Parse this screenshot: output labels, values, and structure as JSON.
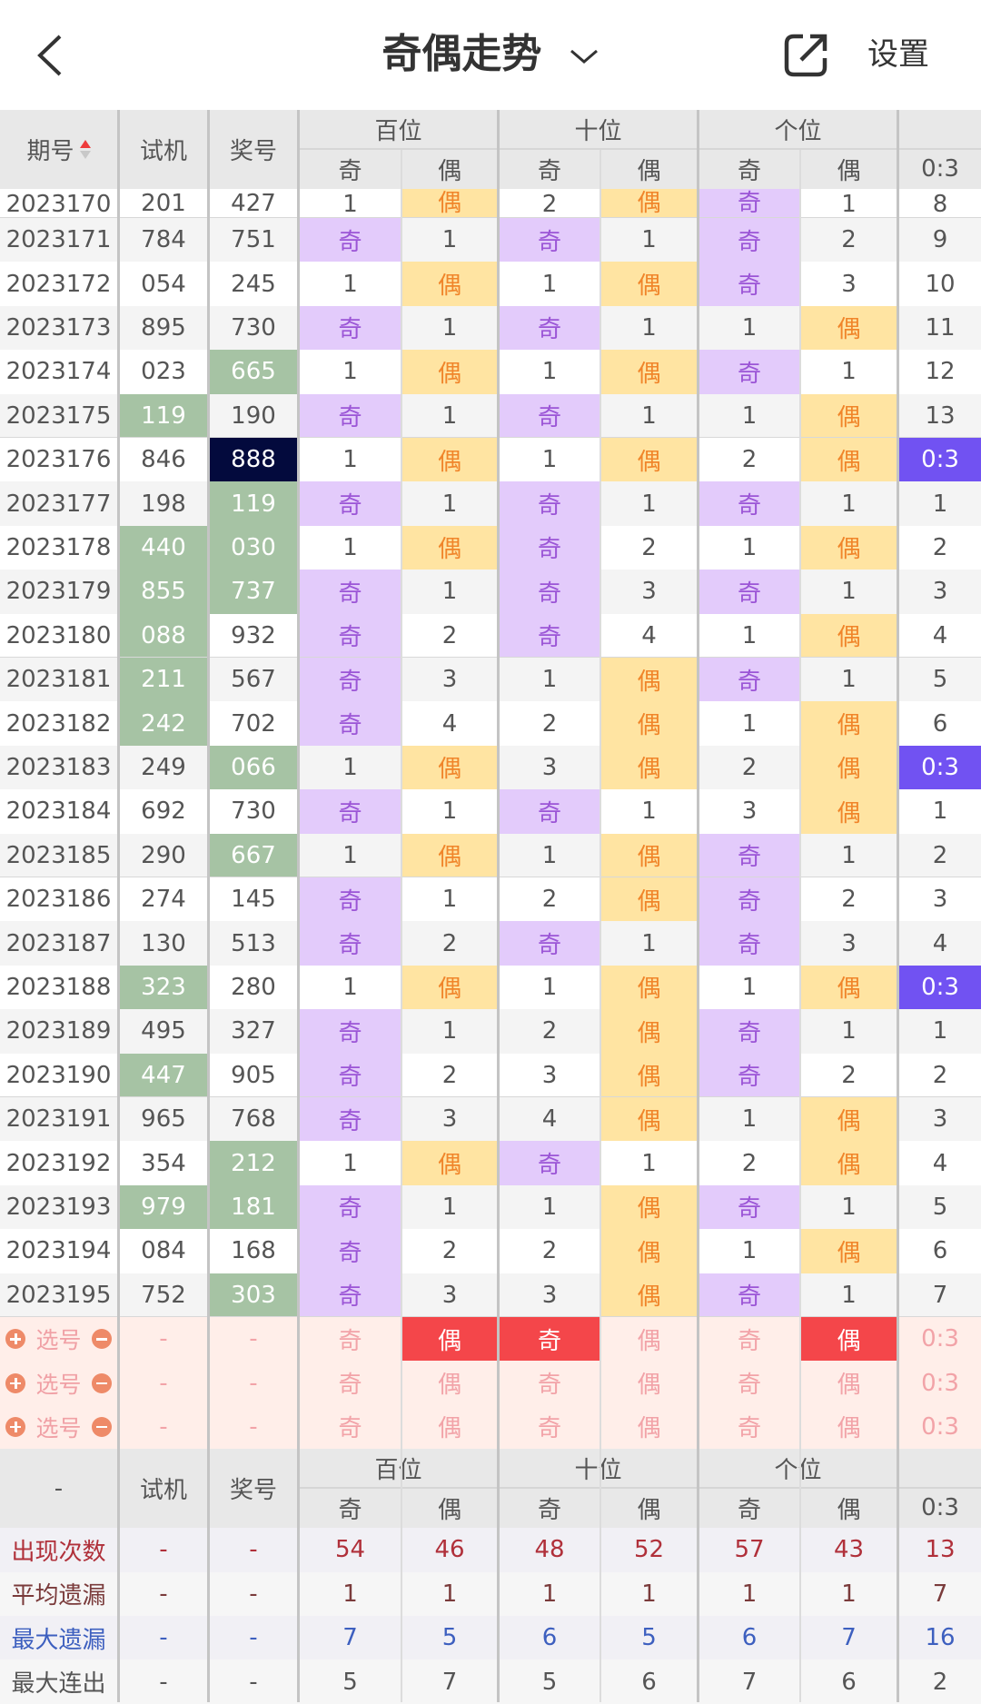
{
  "header": {
    "title": "奇偶走势",
    "settings_label": "设置"
  },
  "columns": {
    "issue": "期号",
    "trial": "试机",
    "prize": "奖号",
    "groups": [
      "百位",
      "十位",
      "个位"
    ],
    "odd": "奇",
    "even": "偶",
    "ratio": "0:3"
  },
  "rows": [
    {
      "issue": "2023170",
      "trial": "201",
      "prize": "427",
      "trialHi": false,
      "prizeHi": "",
      "cells": [
        "1",
        "偶",
        "2",
        "偶",
        "奇",
        "1"
      ],
      "ratio": "8"
    },
    {
      "issue": "2023171",
      "trial": "784",
      "prize": "751",
      "trialHi": false,
      "prizeHi": "",
      "cells": [
        "奇",
        "1",
        "奇",
        "1",
        "奇",
        "2"
      ],
      "ratio": "9"
    },
    {
      "issue": "2023172",
      "trial": "054",
      "prize": "245",
      "trialHi": false,
      "prizeHi": "",
      "cells": [
        "1",
        "偶",
        "1",
        "偶",
        "奇",
        "3"
      ],
      "ratio": "10"
    },
    {
      "issue": "2023173",
      "trial": "895",
      "prize": "730",
      "trialHi": false,
      "prizeHi": "",
      "cells": [
        "奇",
        "1",
        "奇",
        "1",
        "1",
        "偶"
      ],
      "ratio": "11"
    },
    {
      "issue": "2023174",
      "trial": "023",
      "prize": "665",
      "trialHi": false,
      "prizeHi": "green",
      "cells": [
        "1",
        "偶",
        "1",
        "偶",
        "奇",
        "1"
      ],
      "ratio": "12"
    },
    {
      "issue": "2023175",
      "trial": "119",
      "prize": "190",
      "trialHi": true,
      "prizeHi": "",
      "cells": [
        "奇",
        "1",
        "奇",
        "1",
        "1",
        "偶"
      ],
      "ratio": "13"
    },
    {
      "issue": "2023176",
      "trial": "846",
      "prize": "888",
      "trialHi": false,
      "prizeHi": "navy",
      "cells": [
        "1",
        "偶",
        "1",
        "偶",
        "2",
        "偶"
      ],
      "ratio": "0:3"
    },
    {
      "issue": "2023177",
      "trial": "198",
      "prize": "119",
      "trialHi": false,
      "prizeHi": "green",
      "cells": [
        "奇",
        "1",
        "奇",
        "1",
        "奇",
        "1"
      ],
      "ratio": "1"
    },
    {
      "issue": "2023178",
      "trial": "440",
      "prize": "030",
      "trialHi": true,
      "prizeHi": "green",
      "cells": [
        "1",
        "偶",
        "奇",
        "2",
        "1",
        "偶"
      ],
      "ratio": "2"
    },
    {
      "issue": "2023179",
      "trial": "855",
      "prize": "737",
      "trialHi": true,
      "prizeHi": "green",
      "cells": [
        "奇",
        "1",
        "奇",
        "3",
        "奇",
        "1"
      ],
      "ratio": "3"
    },
    {
      "issue": "2023180",
      "trial": "088",
      "prize": "932",
      "trialHi": true,
      "prizeHi": "",
      "cells": [
        "奇",
        "2",
        "奇",
        "4",
        "1",
        "偶"
      ],
      "ratio": "4"
    },
    {
      "issue": "2023181",
      "trial": "211",
      "prize": "567",
      "trialHi": true,
      "prizeHi": "",
      "cells": [
        "奇",
        "3",
        "1",
        "偶",
        "奇",
        "1"
      ],
      "ratio": "5"
    },
    {
      "issue": "2023182",
      "trial": "242",
      "prize": "702",
      "trialHi": true,
      "prizeHi": "",
      "cells": [
        "奇",
        "4",
        "2",
        "偶",
        "1",
        "偶"
      ],
      "ratio": "6"
    },
    {
      "issue": "2023183",
      "trial": "249",
      "prize": "066",
      "trialHi": false,
      "prizeHi": "green",
      "cells": [
        "1",
        "偶",
        "3",
        "偶",
        "2",
        "偶"
      ],
      "ratio": "0:3"
    },
    {
      "issue": "2023184",
      "trial": "692",
      "prize": "730",
      "trialHi": false,
      "prizeHi": "",
      "cells": [
        "奇",
        "1",
        "奇",
        "1",
        "3",
        "偶"
      ],
      "ratio": "1"
    },
    {
      "issue": "2023185",
      "trial": "290",
      "prize": "667",
      "trialHi": false,
      "prizeHi": "green",
      "cells": [
        "1",
        "偶",
        "1",
        "偶",
        "奇",
        "1"
      ],
      "ratio": "2"
    },
    {
      "issue": "2023186",
      "trial": "274",
      "prize": "145",
      "trialHi": false,
      "prizeHi": "",
      "cells": [
        "奇",
        "1",
        "2",
        "偶",
        "奇",
        "2"
      ],
      "ratio": "3"
    },
    {
      "issue": "2023187",
      "trial": "130",
      "prize": "513",
      "trialHi": false,
      "prizeHi": "",
      "cells": [
        "奇",
        "2",
        "奇",
        "1",
        "奇",
        "3"
      ],
      "ratio": "4"
    },
    {
      "issue": "2023188",
      "trial": "323",
      "prize": "280",
      "trialHi": true,
      "prizeHi": "",
      "cells": [
        "1",
        "偶",
        "1",
        "偶",
        "1",
        "偶"
      ],
      "ratio": "0:3"
    },
    {
      "issue": "2023189",
      "trial": "495",
      "prize": "327",
      "trialHi": false,
      "prizeHi": "",
      "cells": [
        "奇",
        "1",
        "2",
        "偶",
        "奇",
        "1"
      ],
      "ratio": "1"
    },
    {
      "issue": "2023190",
      "trial": "447",
      "prize": "905",
      "trialHi": true,
      "prizeHi": "",
      "cells": [
        "奇",
        "2",
        "3",
        "偶",
        "奇",
        "2"
      ],
      "ratio": "2"
    },
    {
      "issue": "2023191",
      "trial": "965",
      "prize": "768",
      "trialHi": false,
      "prizeHi": "",
      "cells": [
        "奇",
        "3",
        "4",
        "偶",
        "1",
        "偶"
      ],
      "ratio": "3"
    },
    {
      "issue": "2023192",
      "trial": "354",
      "prize": "212",
      "trialHi": false,
      "prizeHi": "green",
      "cells": [
        "1",
        "偶",
        "奇",
        "1",
        "2",
        "偶"
      ],
      "ratio": "4"
    },
    {
      "issue": "2023193",
      "trial": "979",
      "prize": "181",
      "trialHi": true,
      "prizeHi": "green",
      "cells": [
        "奇",
        "1",
        "1",
        "偶",
        "奇",
        "1"
      ],
      "ratio": "5"
    },
    {
      "issue": "2023194",
      "trial": "084",
      "prize": "168",
      "trialHi": false,
      "prizeHi": "",
      "cells": [
        "奇",
        "2",
        "2",
        "偶",
        "1",
        "偶"
      ],
      "ratio": "6"
    },
    {
      "issue": "2023195",
      "trial": "752",
      "prize": "303",
      "trialHi": false,
      "prizeHi": "green",
      "cells": [
        "奇",
        "3",
        "3",
        "偶",
        "奇",
        "1"
      ],
      "ratio": "7"
    }
  ],
  "selection": {
    "label": "选号",
    "dash": "-",
    "rows": [
      {
        "cells": [
          "奇",
          "偶",
          "奇",
          "偶",
          "奇",
          "偶"
        ],
        "selected": [
          false,
          true,
          true,
          false,
          false,
          true
        ],
        "ratio": "0:3"
      },
      {
        "cells": [
          "奇",
          "偶",
          "奇",
          "偶",
          "奇",
          "偶"
        ],
        "selected": [
          false,
          false,
          false,
          false,
          false,
          false
        ],
        "ratio": "0:3"
      },
      {
        "cells": [
          "奇",
          "偶",
          "奇",
          "偶",
          "奇",
          "偶"
        ],
        "selected": [
          false,
          false,
          false,
          false,
          false,
          false
        ],
        "ratio": "0:3"
      }
    ]
  },
  "stats": {
    "corner": "-",
    "rows": [
      {
        "label": "出现次数",
        "style": "red",
        "values": [
          "54",
          "46",
          "48",
          "52",
          "57",
          "43"
        ],
        "ratio": "13"
      },
      {
        "label": "平均遗漏",
        "style": "brown",
        "values": [
          "1",
          "1",
          "1",
          "1",
          "1",
          "1"
        ],
        "ratio": "7"
      },
      {
        "label": "最大遗漏",
        "style": "blue",
        "values": [
          "7",
          "5",
          "6",
          "5",
          "6",
          "7"
        ],
        "ratio": "16"
      },
      {
        "label": "最大连出",
        "style": "gray",
        "values": [
          "5",
          "7",
          "5",
          "6",
          "7",
          "6"
        ],
        "ratio": "2"
      }
    ]
  },
  "colors": {
    "odd_bg": "#E3CBFB",
    "odd_text": "#9B55D6",
    "even_bg": "#FFE4A2",
    "even_text": "#F0852A",
    "hit_green": "#A6C3A4",
    "triple_navy": "#030A3D",
    "ratio_highlight": "#7152F2",
    "select_red": "#F4464A"
  }
}
